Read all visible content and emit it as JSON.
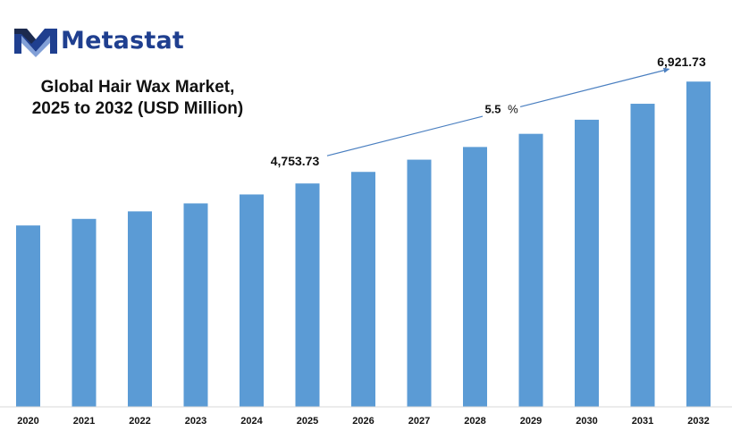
{
  "brand": {
    "name": "Metastat",
    "logo_icon": "metastat-m-logo-icon",
    "color": "#1f3f8f"
  },
  "chart_data": {
    "type": "bar",
    "title_lines": [
      "Global Hair Wax Market,",
      "2025 to 2032 (USD Million)"
    ],
    "categories": [
      "2020",
      "2021",
      "2022",
      "2023",
      "2024",
      "2025",
      "2026",
      "2027",
      "2028",
      "2029",
      "2030",
      "2031",
      "2032"
    ],
    "values": [
      3860,
      4000,
      4160,
      4330,
      4520,
      4753.73,
      5000,
      5260,
      5530,
      5810,
      6110,
      6450,
      6921.73
    ],
    "ylim": [
      0,
      7383
    ],
    "xlabel": "",
    "ylabel": "",
    "grid": false,
    "bar_color": "#5b9bd5",
    "annotations": [
      {
        "text": "4,753.73",
        "category": "2025"
      },
      {
        "text": "6,921.73",
        "category": "2032"
      },
      {
        "text": "5.5",
        "suffix": "%",
        "type": "cagr-arrow"
      }
    ]
  }
}
